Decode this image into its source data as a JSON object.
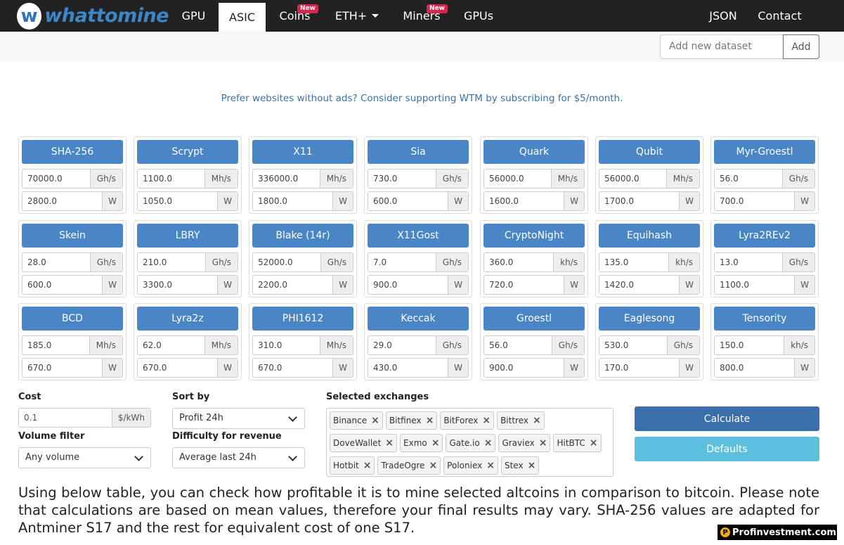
{
  "brand": {
    "logo_letter": "w",
    "name": "whattomine"
  },
  "nav": {
    "items": [
      {
        "label": "GPU",
        "badge": ""
      },
      {
        "label": "ASIC",
        "badge": ""
      },
      {
        "label": "Coins",
        "badge": "New"
      },
      {
        "label": "ETH+",
        "badge": ""
      },
      {
        "label": "Miners",
        "badge": "New"
      },
      {
        "label": "GPUs",
        "badge": ""
      }
    ],
    "right": [
      {
        "label": "JSON"
      },
      {
        "label": "Contact"
      }
    ]
  },
  "dataset": {
    "placeholder": "Add new dataset",
    "add_label": "Add"
  },
  "promo": "Prefer websites without ads? Consider supporting WTM by subscribing for $5/month.",
  "algorithms": [
    {
      "name": "SHA-256",
      "hashrate": "70000.0",
      "hash_unit": "Gh/s",
      "power": "2800.0",
      "power_unit": "W"
    },
    {
      "name": "Scrypt",
      "hashrate": "1100.0",
      "hash_unit": "Mh/s",
      "power": "1050.0",
      "power_unit": "W"
    },
    {
      "name": "X11",
      "hashrate": "336000.0",
      "hash_unit": "Mh/s",
      "power": "1800.0",
      "power_unit": "W"
    },
    {
      "name": "Sia",
      "hashrate": "730.0",
      "hash_unit": "Gh/s",
      "power": "600.0",
      "power_unit": "W"
    },
    {
      "name": "Quark",
      "hashrate": "56000.0",
      "hash_unit": "Mh/s",
      "power": "1600.0",
      "power_unit": "W"
    },
    {
      "name": "Qubit",
      "hashrate": "56000.0",
      "hash_unit": "Mh/s",
      "power": "1700.0",
      "power_unit": "W"
    },
    {
      "name": "Myr-Groestl",
      "hashrate": "56.0",
      "hash_unit": "Gh/s",
      "power": "700.0",
      "power_unit": "W"
    },
    {
      "name": "Skein",
      "hashrate": "28.0",
      "hash_unit": "Gh/s",
      "power": "600.0",
      "power_unit": "W"
    },
    {
      "name": "LBRY",
      "hashrate": "210.0",
      "hash_unit": "Gh/s",
      "power": "3300.0",
      "power_unit": "W"
    },
    {
      "name": "Blake (14r)",
      "hashrate": "52000.0",
      "hash_unit": "Gh/s",
      "power": "2200.0",
      "power_unit": "W"
    },
    {
      "name": "X11Gost",
      "hashrate": "7.0",
      "hash_unit": "Gh/s",
      "power": "900.0",
      "power_unit": "W"
    },
    {
      "name": "CryptoNight",
      "hashrate": "360.0",
      "hash_unit": "kh/s",
      "power": "720.0",
      "power_unit": "W"
    },
    {
      "name": "Equihash",
      "hashrate": "135.0",
      "hash_unit": "kh/s",
      "power": "1420.0",
      "power_unit": "W"
    },
    {
      "name": "Lyra2REv2",
      "hashrate": "13.0",
      "hash_unit": "Gh/s",
      "power": "1100.0",
      "power_unit": "W"
    },
    {
      "name": "BCD",
      "hashrate": "185.0",
      "hash_unit": "Mh/s",
      "power": "670.0",
      "power_unit": "W"
    },
    {
      "name": "Lyra2z",
      "hashrate": "62.0",
      "hash_unit": "Mh/s",
      "power": "670.0",
      "power_unit": "W"
    },
    {
      "name": "PHI1612",
      "hashrate": "310.0",
      "hash_unit": "Mh/s",
      "power": "670.0",
      "power_unit": "W"
    },
    {
      "name": "Keccak",
      "hashrate": "29.0",
      "hash_unit": "Gh/s",
      "power": "430.0",
      "power_unit": "W"
    },
    {
      "name": "Groestl",
      "hashrate": "56.0",
      "hash_unit": "Gh/s",
      "power": "900.0",
      "power_unit": "W"
    },
    {
      "name": "Eaglesong",
      "hashrate": "530.0",
      "hash_unit": "Gh/s",
      "power": "170.0",
      "power_unit": "W"
    },
    {
      "name": "Tensority",
      "hashrate": "150.0",
      "hash_unit": "kh/s",
      "power": "800.0",
      "power_unit": "W"
    }
  ],
  "controls": {
    "cost_label": "Cost",
    "cost_value": "0.1",
    "cost_unit": "$/kWh",
    "volume_label": "Volume filter",
    "volume_value": "Any volume",
    "sort_label": "Sort by",
    "sort_value": "Profit 24h",
    "difficulty_label": "Difficulty for revenue",
    "difficulty_value": "Average last 24h",
    "exchanges_label": "Selected exchanges",
    "exchanges": [
      "Binance",
      "Bitfinex",
      "BitForex",
      "Bittrex",
      "DoveWallet",
      "Exmo",
      "Gate.io",
      "Graviex",
      "HitBTC",
      "Hotbit",
      "TradeOgre",
      "Poloniex",
      "Stex"
    ],
    "remove_glyph": "×",
    "calculate_label": "Calculate",
    "defaults_label": "Defaults"
  },
  "info_text": "Using below table, you can check how profitable it is to mine selected altcoins in comparison to bitcoin. Please note that calculations are based on mean values, therefore your final results may vary. SHA-256 values are adapted for Antminer S17 and the rest for equivalent cost of one S17.",
  "watermark": {
    "icon": "P",
    "text": "Profinvestment.com"
  }
}
